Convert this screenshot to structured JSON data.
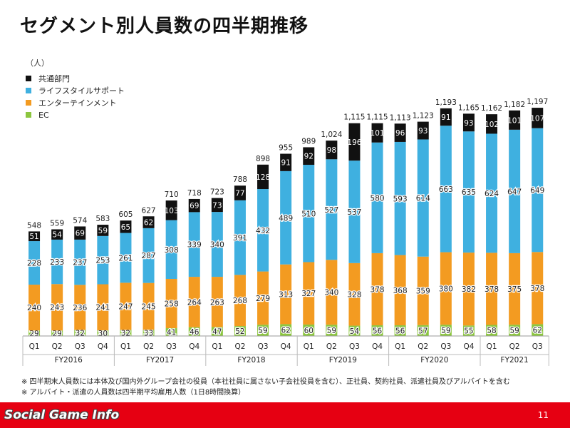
{
  "title": "セグメント別人員数の四半期推移",
  "unit": "（人）",
  "legend": [
    {
      "name": "共通部門",
      "color": "#111111"
    },
    {
      "name": "ライフスタイルサポート",
      "color": "#3fb0e0"
    },
    {
      "name": "エンターテインメント",
      "color": "#f39b21"
    },
    {
      "name": "EC",
      "color": "#8cc63f"
    }
  ],
  "notes": [
    "※ 四半期末人員数には本体及び国内外グループ会社の役員（本社社員に属さない子会社役員を含む）、正社員、契約社員、派遣社員及びアルバイトを含む",
    "※ アルバイト・派遣の人員数は四半期平均雇用人数（1日8時間換算）"
  ],
  "footer": {
    "watermark": "Social Game Info",
    "page_number": "11"
  },
  "chart_data": {
    "type": "bar",
    "stacked": true,
    "ylim": [
      0,
      1250
    ],
    "quarters": [
      "Q1",
      "Q2",
      "Q3",
      "Q4",
      "Q1",
      "Q2",
      "Q3",
      "Q4",
      "Q1",
      "Q2",
      "Q3",
      "Q4",
      "Q1",
      "Q2",
      "Q3",
      "Q4",
      "Q1",
      "Q2",
      "Q3",
      "Q4",
      "Q1",
      "Q2",
      "Q3"
    ],
    "fiscal_years": [
      {
        "label": "FY2016",
        "count": 4
      },
      {
        "label": "FY2017",
        "count": 4
      },
      {
        "label": "FY2018",
        "count": 4
      },
      {
        "label": "FY2019",
        "count": 4
      },
      {
        "label": "FY2020",
        "count": 4
      },
      {
        "label": "FY2021",
        "count": 3
      }
    ],
    "series": [
      {
        "name": "EC",
        "color": "#8cc63f",
        "label_color": "#222222",
        "values": [
          29,
          29,
          32,
          30,
          32,
          33,
          41,
          46,
          47,
          52,
          59,
          62,
          60,
          59,
          54,
          56,
          56,
          57,
          59,
          55,
          58,
          59,
          62
        ]
      },
      {
        "name": "エンターテインメント",
        "color": "#f39b21",
        "label_color": "#222222",
        "values": [
          240,
          243,
          236,
          241,
          247,
          245,
          258,
          264,
          263,
          268,
          279,
          313,
          327,
          340,
          328,
          378,
          368,
          359,
          380,
          382,
          378,
          375,
          378
        ]
      },
      {
        "name": "ライフスタイルサポート",
        "color": "#3fb0e0",
        "label_color": "#222222",
        "values": [
          228,
          233,
          237,
          253,
          261,
          287,
          308,
          339,
          340,
          391,
          432,
          489,
          510,
          527,
          537,
          580,
          593,
          614,
          663,
          635,
          624,
          647,
          649
        ]
      },
      {
        "name": "共通部門",
        "color": "#111111",
        "label_color": "#ffffff",
        "values": [
          51,
          54,
          69,
          59,
          65,
          62,
          103,
          69,
          73,
          77,
          128,
          91,
          92,
          98,
          196,
          101,
          96,
          93,
          91,
          93,
          102,
          101,
          107
        ]
      }
    ],
    "totals": [
      "548",
      "559",
      "574",
      "583",
      "605",
      "627",
      "710",
      "718",
      "723",
      "788",
      "898",
      "955",
      "989",
      "1,024",
      "1,115",
      "1,115",
      "1,113",
      "1,123",
      "1,193",
      "1,165",
      "1,162",
      "1,182",
      "1,197"
    ]
  }
}
